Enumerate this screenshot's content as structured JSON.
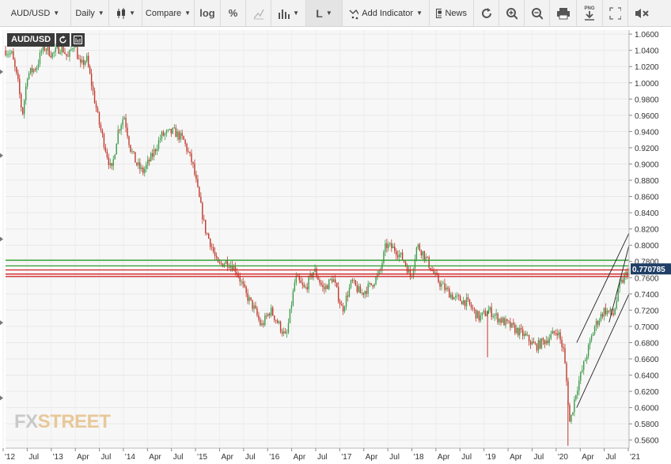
{
  "toolbar": {
    "symbol": "AUD/USD",
    "interval": "Daily",
    "compare": "Compare",
    "log": "log",
    "percent": "%",
    "line_type": "L",
    "add_indicator": "Add Indicator",
    "news": "News",
    "png_label": "PNG"
  },
  "legend": {
    "symbol": "AUD/USD"
  },
  "logo": {
    "part1": "FX",
    "part2": "STREET"
  },
  "colors": {
    "up": "#3d9b4a",
    "down": "#c0392b",
    "green_line": "#2e9e2e",
    "red_line": "#d42020",
    "price_badge": "#1f3f66",
    "trend": "#222222"
  },
  "chart_data": {
    "type": "candlestick",
    "title": "",
    "xlabel": "",
    "ylabel": "",
    "ylim": [
      0.55,
      1.065
    ],
    "yticks": [
      "1.0600",
      "1.0400",
      "1.0200",
      "1.0000",
      "0.9800",
      "0.9600",
      "0.9400",
      "0.9200",
      "0.9000",
      "0.8800",
      "0.8600",
      "0.8400",
      "0.8200",
      "0.8000",
      "0.7800",
      "0.7600",
      "0.7400",
      "0.7200",
      "0.7000",
      "0.6800",
      "0.6600",
      "0.6400",
      "0.6200",
      "0.6000",
      "0.5800",
      "0.5600"
    ],
    "xticks": [
      "'12",
      "Jul",
      "'13",
      "Apr",
      "Jul",
      "'14",
      "Apr",
      "Jul",
      "'15",
      "Apr",
      "Jul",
      "'16",
      "Apr",
      "Jul",
      "'17",
      "Apr",
      "Jul",
      "'18",
      "Apr",
      "Jul",
      "'19",
      "Apr",
      "Jul",
      "'20",
      "Apr",
      "Jul",
      "'21"
    ],
    "last_price": "0.770785",
    "horizontal_levels": {
      "green": [
        0.7815,
        0.7745
      ],
      "red": [
        0.7695,
        0.7645,
        0.7615
      ]
    },
    "series_path": [
      [
        0.0,
        1.04
      ],
      [
        0.01,
        1.035
      ],
      [
        0.02,
        1.0
      ],
      [
        0.027,
        0.96
      ],
      [
        0.035,
        1.01
      ],
      [
        0.05,
        1.02
      ],
      [
        0.06,
        1.045
      ],
      [
        0.075,
        1.035
      ],
      [
        0.09,
        1.045
      ],
      [
        0.1,
        1.03
      ],
      [
        0.11,
        1.05
      ],
      [
        0.12,
        1.02
      ],
      [
        0.13,
        1.03
      ],
      [
        0.14,
        0.99
      ],
      [
        0.15,
        0.95
      ],
      [
        0.16,
        0.92
      ],
      [
        0.17,
        0.89
      ],
      [
        0.18,
        0.94
      ],
      [
        0.19,
        0.96
      ],
      [
        0.2,
        0.92
      ],
      [
        0.21,
        0.9
      ],
      [
        0.22,
        0.89
      ],
      [
        0.235,
        0.91
      ],
      [
        0.25,
        0.935
      ],
      [
        0.27,
        0.94
      ],
      [
        0.285,
        0.93
      ],
      [
        0.3,
        0.9
      ],
      [
        0.31,
        0.86
      ],
      [
        0.32,
        0.82
      ],
      [
        0.33,
        0.8
      ],
      [
        0.34,
        0.775
      ],
      [
        0.355,
        0.78
      ],
      [
        0.37,
        0.77
      ],
      [
        0.385,
        0.74
      ],
      [
        0.4,
        0.72
      ],
      [
        0.41,
        0.7
      ],
      [
        0.425,
        0.72
      ],
      [
        0.44,
        0.7
      ],
      [
        0.45,
        0.685
      ],
      [
        0.465,
        0.76
      ],
      [
        0.48,
        0.745
      ],
      [
        0.495,
        0.77
      ],
      [
        0.51,
        0.745
      ],
      [
        0.525,
        0.76
      ],
      [
        0.54,
        0.72
      ],
      [
        0.555,
        0.755
      ],
      [
        0.57,
        0.74
      ],
      [
        0.585,
        0.75
      ],
      [
        0.6,
        0.765
      ],
      [
        0.61,
        0.8
      ],
      [
        0.625,
        0.795
      ],
      [
        0.64,
        0.78
      ],
      [
        0.65,
        0.76
      ],
      [
        0.66,
        0.8
      ],
      [
        0.67,
        0.79
      ],
      [
        0.68,
        0.775
      ],
      [
        0.69,
        0.76
      ],
      [
        0.7,
        0.75
      ],
      [
        0.72,
        0.735
      ],
      [
        0.74,
        0.73
      ],
      [
        0.76,
        0.71
      ],
      [
        0.775,
        0.72
      ],
      [
        0.79,
        0.71
      ],
      [
        0.81,
        0.7
      ],
      [
        0.83,
        0.69
      ],
      [
        0.85,
        0.675
      ],
      [
        0.87,
        0.685
      ],
      [
        0.885,
        0.695
      ],
      [
        0.895,
        0.67
      ],
      [
        0.9,
        0.63
      ],
      [
        0.905,
        0.58
      ],
      [
        0.915,
        0.62
      ],
      [
        0.93,
        0.66
      ],
      [
        0.945,
        0.7
      ],
      [
        0.96,
        0.72
      ],
      [
        0.975,
        0.715
      ],
      [
        0.985,
        0.75
      ],
      [
        1.0,
        0.7708
      ]
    ],
    "spikes": [
      [
        0.773,
        0.662
      ],
      [
        0.902,
        0.553
      ]
    ]
  }
}
